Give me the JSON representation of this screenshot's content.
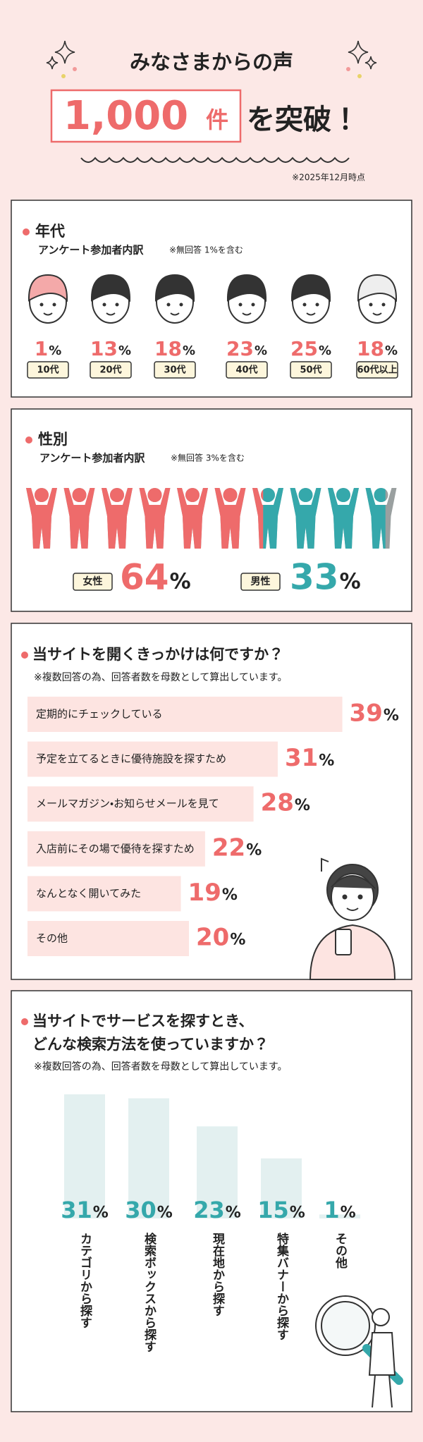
{
  "header": {
    "title": "みなさまからの声",
    "count": "1,000",
    "count_unit": "件",
    "suffix": "を突破！",
    "note": "※2025年12月時点"
  },
  "age": {
    "title": "年代",
    "subtitle": "アンケート参加者内訳",
    "note": "※無回答 1%を含む",
    "unit": "%",
    "categories": [
      "10代",
      "20代",
      "30代",
      "40代",
      "50代",
      "60代以上"
    ],
    "values": [
      1,
      13,
      18,
      23,
      25,
      18
    ]
  },
  "gender": {
    "title": "性別",
    "subtitle": "アンケート参加者内訳",
    "note": "※無回答 3%を含む",
    "unit": "%",
    "series": [
      {
        "name": "女性",
        "color": "#ee6b6b",
        "value": 64
      },
      {
        "name": "男性",
        "color": "#35a8ab",
        "value": 33
      }
    ]
  },
  "reason": {
    "title": "当サイトを開くきっかけは何ですか？",
    "note": "※複数回答の為、回答者数を母数として算出しています。",
    "unit": "%",
    "categories": [
      "定期的にチェックしている",
      "予定を立てるときに優待施設を探すため",
      "メールマガジン・お知らせメールを見て",
      "入店前にその場で優待を探すため",
      "なんとなく開いてみた",
      "その他"
    ],
    "values": [
      39,
      31,
      28,
      22,
      19,
      20
    ]
  },
  "search": {
    "title_lines": [
      "当サイトでサービスを探すとき、",
      "どんな検索方法を使っていますか？"
    ],
    "note": "※複数回答の為、回答者数を母数として算出しています。",
    "unit": "%",
    "categories": [
      "カテゴリから探す",
      "検索ボックスから探す",
      "現在地から探す",
      "特集バナーから探す",
      "その他"
    ],
    "values": [
      31,
      30,
      23,
      15,
      1
    ]
  }
}
